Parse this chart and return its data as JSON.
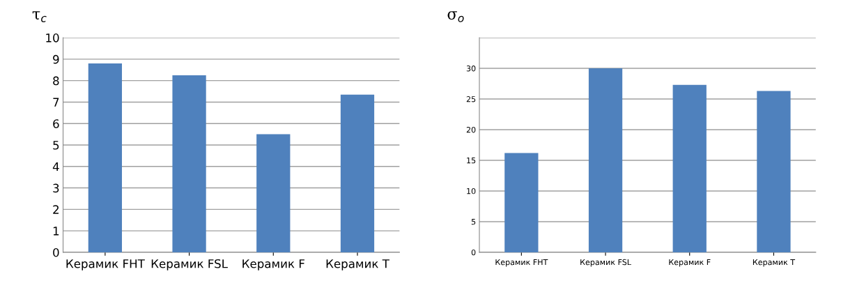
{
  "chart_data": [
    {
      "type": "bar",
      "ylabel": "τ$_{c}$",
      "categories": [
        "Керамик FHT",
        "Керамик FSL",
        "Керамик F",
        "Керамик T"
      ],
      "values": [
        8.8,
        8.25,
        5.5,
        7.35
      ],
      "color": "#4f81bd",
      "ylim": [
        0,
        10
      ],
      "yticks": [
        0,
        1,
        2,
        3,
        4,
        5,
        6,
        7,
        8,
        9,
        10
      ],
      "grid": "y"
    },
    {
      "type": "bar",
      "ylabel": "σ$_{o}$",
      "categories": [
        "Керамик FHT",
        "Керамик FSL",
        "Керамик F",
        "Керамик T"
      ],
      "values": [
        16.2,
        30,
        27.3,
        26.3
      ],
      "color": "#4f81bd",
      "ylim": [
        0,
        35
      ],
      "yticks": [
        0,
        5,
        10,
        15,
        20,
        25,
        30,
        {
          "value": 35,
          "label": null
        }
      ],
      "grid": "y"
    }
  ]
}
